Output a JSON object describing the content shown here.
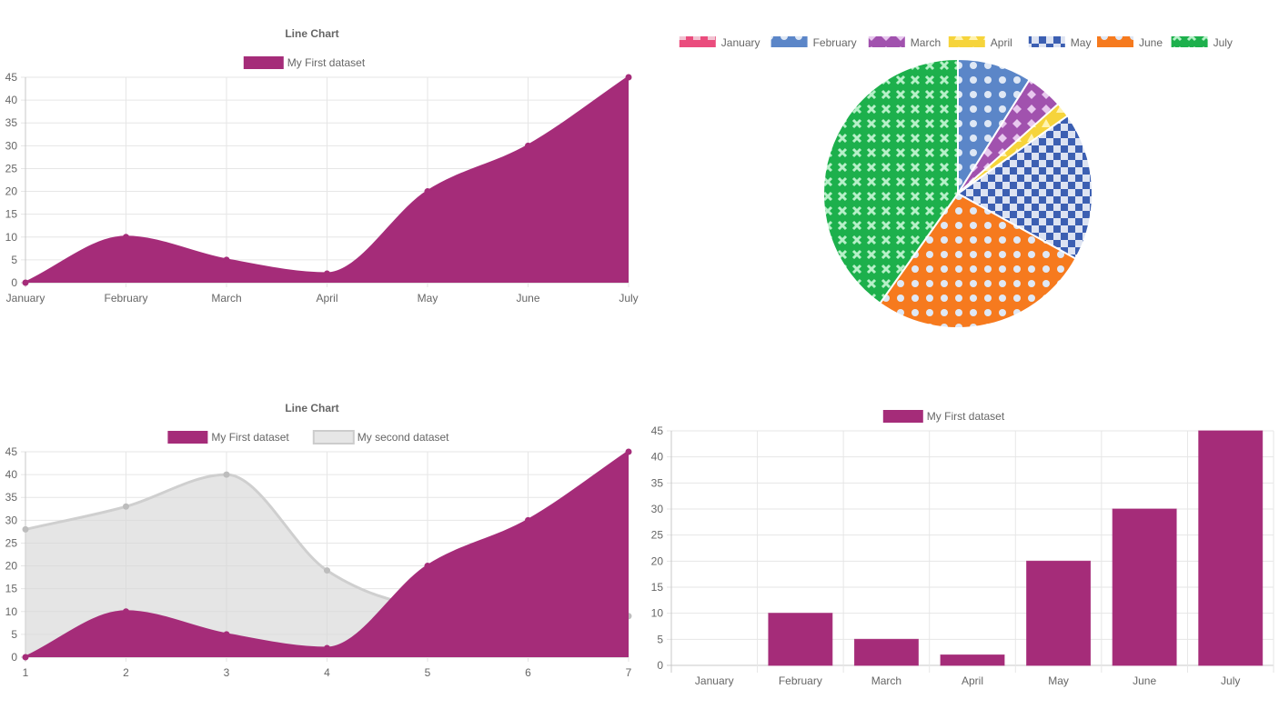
{
  "chart_data": [
    {
      "type": "area",
      "title": "Line Chart",
      "categories": [
        "January",
        "February",
        "March",
        "April",
        "May",
        "June",
        "July"
      ],
      "series": [
        {
          "name": "My First dataset",
          "values": [
            0,
            10,
            5,
            2,
            20,
            30,
            45
          ],
          "color": "#a52c79"
        }
      ],
      "ylim": [
        0,
        45
      ],
      "ytick_step": 5,
      "grid": true,
      "legend": "top"
    },
    {
      "type": "pie",
      "labels": [
        "January",
        "February",
        "March",
        "April",
        "May",
        "June",
        "July"
      ],
      "values": [
        0,
        10,
        5,
        2,
        20,
        30,
        45
      ],
      "colors": [
        "#ea4c7d",
        "#5b86c8",
        "#a152ae",
        "#f6d43b",
        "#3c5fb2",
        "#f67a1e",
        "#1db04c"
      ],
      "patterns": [
        "square",
        "dot",
        "diamond",
        "triangle",
        "check",
        "dot",
        "cross"
      ],
      "legend": "top"
    },
    {
      "type": "area",
      "title": "Line Chart",
      "categories": [
        "1",
        "2",
        "3",
        "4",
        "5",
        "6",
        "7"
      ],
      "series": [
        {
          "name": "My First dataset",
          "values": [
            0,
            10,
            5,
            2,
            20,
            30,
            45
          ],
          "color": "#a52c79"
        },
        {
          "name": "My second dataset",
          "values": [
            28,
            33,
            40,
            19,
            11,
            10,
            9
          ],
          "color": "#cfcfcf"
        }
      ],
      "ylim": [
        0,
        45
      ],
      "ytick_step": 5,
      "grid": true,
      "legend": "top"
    },
    {
      "type": "bar",
      "categories": [
        "January",
        "February",
        "March",
        "April",
        "May",
        "June",
        "July"
      ],
      "series": [
        {
          "name": "My First dataset",
          "values": [
            0,
            10,
            5,
            2,
            20,
            30,
            45
          ],
          "color": "#a52c79"
        }
      ],
      "ylim": [
        0,
        45
      ],
      "ytick_step": 5,
      "grid": true,
      "legend": "top"
    }
  ]
}
